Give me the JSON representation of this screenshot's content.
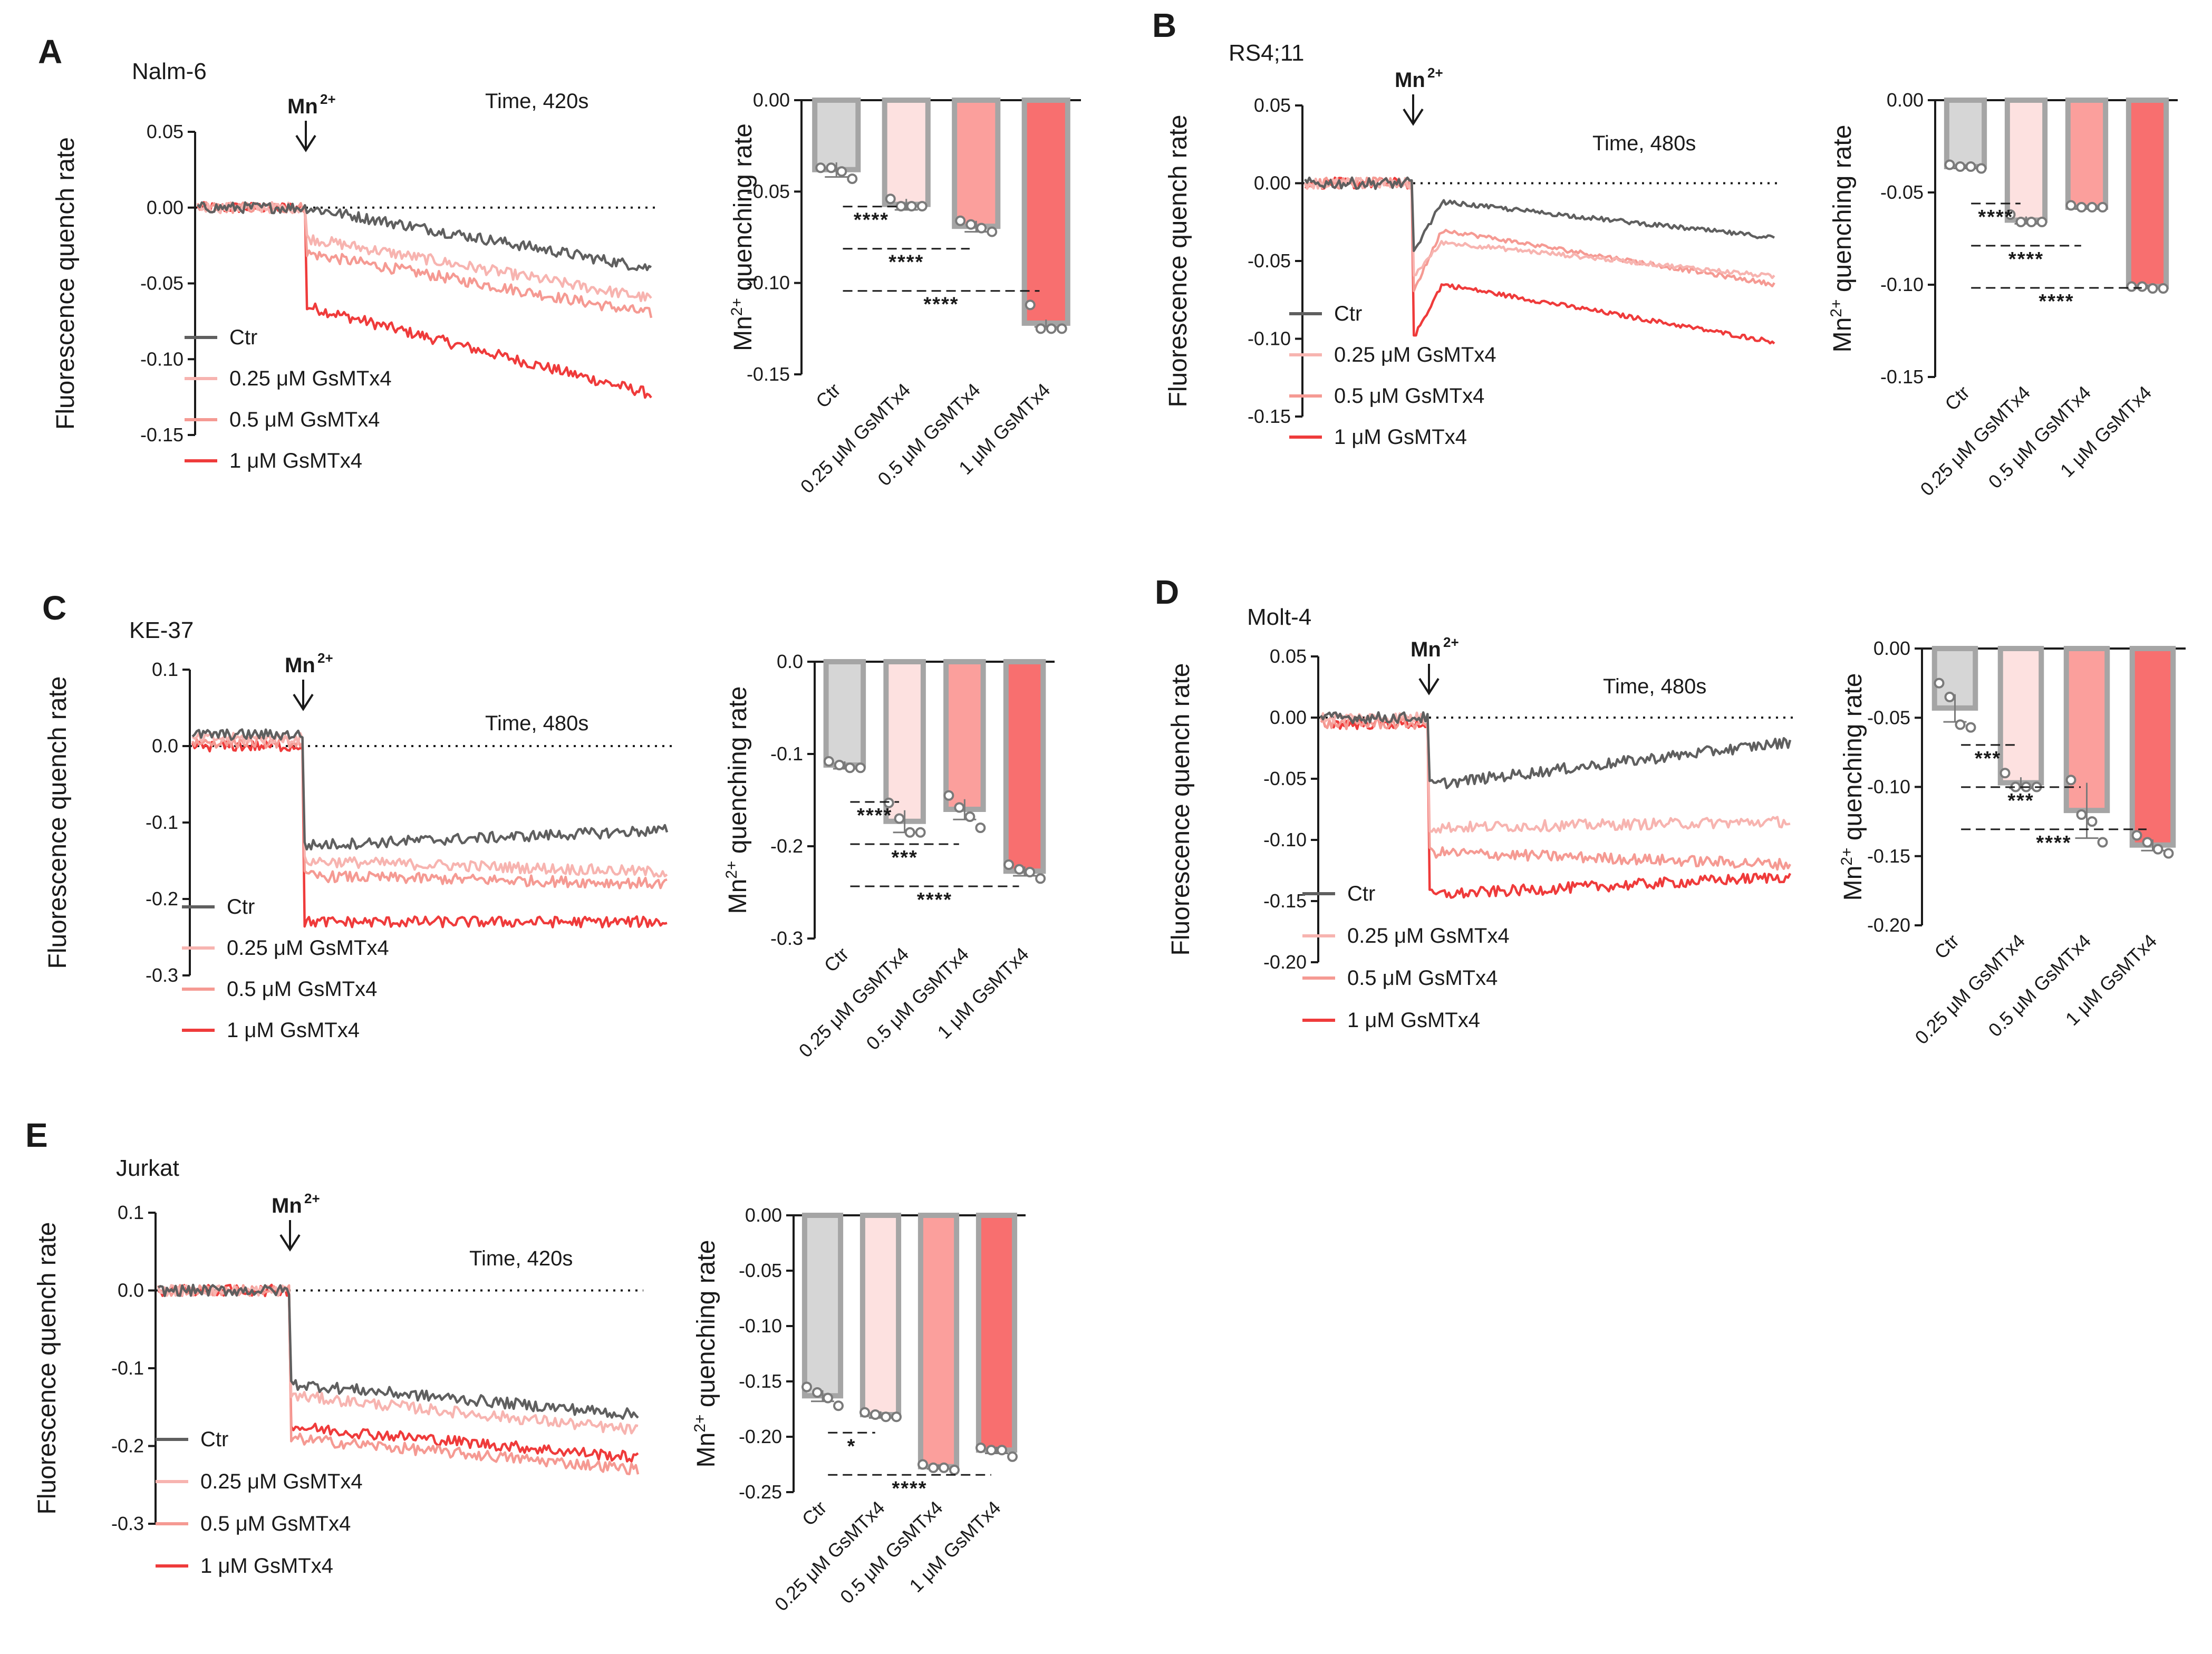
{
  "colors": {
    "ctr_line": "#5f5f5f",
    "g025_line": "#f7b4b0",
    "g05_line": "#f59a93",
    "g1_line": "#ef3b3b",
    "ctr_bar_fill": "#d6d6d6",
    "g025_bar_fill": "#fde1e0",
    "g05_bar_fill": "#fb9f9c",
    "g1_bar_fill": "#f86f6f",
    "bar_edge": "#a5a5a5",
    "axis": "#1a1a1a",
    "dot": "#7a7a7a"
  },
  "legend": [
    "Ctr",
    "0.25 μM GsMTx4",
    "0.5 μM GsMTx4",
    "1 μM GsMTx4"
  ],
  "categories": [
    "Ctr",
    "0.25 μM GsMTx4",
    "0.5 μM GsMTx4",
    "1 μM GsMTx4"
  ],
  "trace_ylabel": "Fluorescence quench rate",
  "bar_ylabel_prefix": "Mn",
  "bar_ylabel_sup": "2+",
  "bar_ylabel_suffix": " quenching rate",
  "mn_label": "Mn",
  "mn_sup": "2+",
  "chart_data": [
    {
      "panel": "A",
      "cell_line": "Nalm-6",
      "type": "line",
      "time_label": "Time, 420s",
      "ylim": [
        -0.15,
        0.05
      ],
      "yticks": [
        "0.05",
        "0.00",
        "-0.05",
        "-0.10",
        "-0.15"
      ],
      "xlabel": "",
      "ylabel": "Fluorescence quench rate",
      "series": [
        {
          "name": "Ctr",
          "baseline": 0.0,
          "final": -0.04,
          "jump": 0.0,
          "plateau_offset": 0.0
        },
        {
          "name": "0.25 μM GsMTx4",
          "baseline": 0.0,
          "final": -0.06,
          "jump": -0.02,
          "plateau_offset": 0.0
        },
        {
          "name": "0.5 μM GsMTx4",
          "baseline": 0.0,
          "final": -0.07,
          "jump": -0.03,
          "plateau_offset": 0.0
        },
        {
          "name": "1 μM GsMTx4",
          "baseline": 0.0,
          "final": -0.123,
          "jump": -0.065,
          "plateau_offset": 0.0
        }
      ]
    },
    {
      "panel": "A",
      "type": "bar",
      "ylabel": "Mn2+ quenching rate",
      "ylim": [
        -0.15,
        0.0
      ],
      "yticks": [
        "0.00",
        "-0.05",
        "-0.10",
        "-0.15"
      ],
      "values": [
        -0.038,
        -0.057,
        -0.069,
        -0.122
      ],
      "errors": [
        0.004,
        0.003,
        0.003,
        0.002
      ],
      "points": [
        [
          -0.037,
          -0.037,
          -0.039,
          -0.043
        ],
        [
          -0.054,
          -0.058,
          -0.058,
          -0.058
        ],
        [
          -0.066,
          -0.068,
          -0.07,
          -0.072
        ],
        [
          -0.112,
          -0.125,
          -0.125,
          -0.125
        ]
      ],
      "significance": [
        {
          "from": 0,
          "to": 1,
          "label": "****"
        },
        {
          "from": 0,
          "to": 2,
          "label": "****"
        },
        {
          "from": 0,
          "to": 3,
          "label": "****"
        }
      ]
    },
    {
      "panel": "B",
      "cell_line": "RS4;11",
      "type": "line",
      "time_label": "Time, 480s",
      "ylim": [
        -0.15,
        0.05
      ],
      "yticks": [
        "0.05",
        "0.00",
        "-0.05",
        "-0.10",
        "-0.15"
      ],
      "xlabel": "",
      "ylabel": "Fluorescence quench rate",
      "series": [
        {
          "name": "Ctr",
          "baseline": 0.0,
          "final": -0.035,
          "jump": -0.045,
          "plateau_offset": -0.012
        },
        {
          "name": "0.25 μM GsMTx4",
          "baseline": 0.0,
          "final": -0.06,
          "jump": -0.06,
          "plateau_offset": -0.038
        },
        {
          "name": "0.5 μM GsMTx4",
          "baseline": 0.0,
          "final": -0.065,
          "jump": -0.07,
          "plateau_offset": -0.03
        },
        {
          "name": "1 μM GsMTx4",
          "baseline": 0.0,
          "final": -0.102,
          "jump": -0.1,
          "plateau_offset": -0.065
        }
      ]
    },
    {
      "panel": "B",
      "type": "bar",
      "ylabel": "Mn2+ quenching rate",
      "ylim": [
        -0.15,
        0.0
      ],
      "yticks": [
        "0.00",
        "-0.05",
        "-0.10",
        "-0.15"
      ],
      "values": [
        -0.036,
        -0.065,
        -0.058,
        -0.101
      ],
      "errors": [
        0.001,
        0.002,
        0.001,
        0.001
      ],
      "points": [
        [
          -0.035,
          -0.036,
          -0.036,
          -0.037
        ],
        [
          -0.062,
          -0.066,
          -0.066,
          -0.066
        ],
        [
          -0.057,
          -0.058,
          -0.058,
          -0.058
        ],
        [
          -0.101,
          -0.101,
          -0.102,
          -0.102
        ]
      ],
      "significance": [
        {
          "from": 0,
          "to": 1,
          "label": "****"
        },
        {
          "from": 0,
          "to": 2,
          "label": "****"
        },
        {
          "from": 0,
          "to": 3,
          "label": "****"
        }
      ]
    },
    {
      "panel": "C",
      "cell_line": "KE-37",
      "type": "line",
      "time_label": "Time, 480s",
      "ylim": [
        -0.3,
        0.1
      ],
      "yticks": [
        "0.1",
        "0.0",
        "-0.1",
        "-0.2",
        "-0.3"
      ],
      "xlabel": "",
      "ylabel": "Fluorescence quench rate",
      "series": [
        {
          "name": "Ctr",
          "baseline": 0.015,
          "final": -0.11,
          "jump": -0.13,
          "plateau_offset": -0.13
        },
        {
          "name": "0.25 μM GsMTx4",
          "baseline": 0.01,
          "final": -0.165,
          "jump": -0.15,
          "plateau_offset": -0.15
        },
        {
          "name": "0.5 μM GsMTx4",
          "baseline": 0.005,
          "final": -0.18,
          "jump": -0.17,
          "plateau_offset": -0.17
        },
        {
          "name": "1 μM GsMTx4",
          "baseline": 0.0,
          "final": -0.23,
          "jump": -0.23,
          "plateau_offset": -0.23
        }
      ]
    },
    {
      "panel": "C",
      "type": "bar",
      "ylabel": "Mn2+ quenching rate",
      "ylim": [
        -0.3,
        0.0
      ],
      "yticks": [
        "0.0",
        "-0.1",
        "-0.2",
        "-0.3"
      ],
      "values": [
        -0.112,
        -0.173,
        -0.16,
        -0.227
      ],
      "errors": [
        0.004,
        0.012,
        0.011,
        0.005
      ],
      "points": [
        [
          -0.108,
          -0.112,
          -0.115,
          -0.115
        ],
        [
          -0.153,
          -0.17,
          -0.185,
          -0.185
        ],
        [
          -0.145,
          -0.158,
          -0.168,
          -0.18
        ],
        [
          -0.22,
          -0.225,
          -0.228,
          -0.235
        ]
      ],
      "significance": [
        {
          "from": 0,
          "to": 1,
          "label": "****"
        },
        {
          "from": 0,
          "to": 2,
          "label": "***"
        },
        {
          "from": 0,
          "to": 3,
          "label": "****"
        }
      ]
    },
    {
      "panel": "D",
      "cell_line": "Molt-4",
      "type": "line",
      "time_label": "Time, 480s",
      "ylim": [
        -0.2,
        0.05
      ],
      "yticks": [
        "0.05",
        "0.00",
        "-0.05",
        "-0.10",
        "-0.15",
        "-0.20"
      ],
      "xlabel": "",
      "ylabel": "Fluorescence quench rate",
      "series": [
        {
          "name": "Ctr",
          "baseline": 0.0,
          "final": -0.02,
          "jump": -0.055,
          "plateau_offset": -0.055
        },
        {
          "name": "0.25 μM GsMTx4",
          "baseline": 0.0,
          "final": -0.085,
          "jump": -0.09,
          "plateau_offset": -0.09
        },
        {
          "name": "0.5 μM GsMTx4",
          "baseline": -0.005,
          "final": -0.12,
          "jump": -0.11,
          "plateau_offset": -0.11
        },
        {
          "name": "1 μM GsMTx4",
          "baseline": -0.005,
          "final": -0.13,
          "jump": -0.145,
          "plateau_offset": -0.145
        }
      ]
    },
    {
      "panel": "D",
      "type": "bar",
      "ylabel": "Mn2+ quenching rate",
      "ylim": [
        -0.2,
        0.0
      ],
      "yticks": [
        "0.00",
        "-0.05",
        "-0.10",
        "-0.15",
        "-0.20"
      ],
      "values": [
        -0.043,
        -0.097,
        -0.117,
        -0.142
      ],
      "errors": [
        0.01,
        0.004,
        0.02,
        0.004
      ],
      "points": [
        [
          -0.025,
          -0.035,
          -0.055,
          -0.057
        ],
        [
          -0.09,
          -0.1,
          -0.1,
          -0.1
        ],
        [
          -0.095,
          -0.12,
          -0.125,
          -0.14
        ],
        [
          -0.135,
          -0.14,
          -0.145,
          -0.148
        ]
      ],
      "significance": [
        {
          "from": 0,
          "to": 1,
          "label": "***"
        },
        {
          "from": 0,
          "to": 2,
          "label": "***"
        },
        {
          "from": 0,
          "to": 3,
          "label": "****"
        }
      ]
    },
    {
      "panel": "E",
      "cell_line": "Jurkat",
      "type": "line",
      "time_label": "Time, 420s",
      "ylim": [
        -0.3,
        0.1
      ],
      "yticks": [
        "0.1",
        "0.0",
        "-0.1",
        "-0.2",
        "-0.3"
      ],
      "xlabel": "",
      "ylabel": "Fluorescence quench rate",
      "series": [
        {
          "name": "Ctr",
          "baseline": 0.0,
          "final": -0.16,
          "jump": -0.12,
          "plateau_offset": -0.12
        },
        {
          "name": "0.25 μM GsMTx4",
          "baseline": 0.0,
          "final": -0.18,
          "jump": -0.135,
          "plateau_offset": -0.135
        },
        {
          "name": "0.5 μM GsMTx4",
          "baseline": 0.0,
          "final": -0.23,
          "jump": -0.19,
          "plateau_offset": -0.19
        },
        {
          "name": "1 μM GsMTx4",
          "baseline": 0.0,
          "final": -0.215,
          "jump": -0.175,
          "plateau_offset": -0.175
        }
      ]
    },
    {
      "panel": "E",
      "type": "bar",
      "ylabel": "Mn2+ quenching rate",
      "ylim": [
        -0.25,
        0.0
      ],
      "yticks": [
        "0.00",
        "-0.05",
        "-0.10",
        "-0.15",
        "-0.20",
        "-0.25"
      ],
      "values": [
        -0.163,
        -0.18,
        -0.227,
        -0.212
      ],
      "errors": [
        0.005,
        0.003,
        0.002,
        0.003
      ],
      "points": [
        [
          -0.155,
          -0.16,
          -0.165,
          -0.172
        ],
        [
          -0.178,
          -0.18,
          -0.182,
          -0.182
        ],
        [
          -0.225,
          -0.228,
          -0.228,
          -0.23
        ],
        [
          -0.21,
          -0.212,
          -0.212,
          -0.218
        ]
      ],
      "significance": [
        {
          "from": 0,
          "to": 1,
          "label": "*"
        },
        {
          "from": 0,
          "to": 3,
          "label": "****"
        }
      ]
    }
  ]
}
